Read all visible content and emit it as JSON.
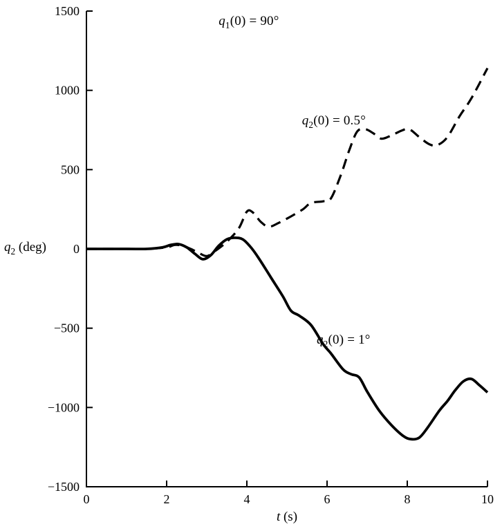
{
  "figure": {
    "background": "#ffffff",
    "ink": "#000000"
  },
  "chart_data": {
    "type": "line",
    "title": "",
    "grid": false,
    "legend": "none",
    "xlabel": {
      "var": "t",
      "sub": "",
      "rest": " (s)"
    },
    "ylabel": {
      "var": "q",
      "sub": "2",
      "rest": " (deg)"
    },
    "xlim": [
      0,
      10
    ],
    "ylim": [
      -1500,
      1500
    ],
    "xticks": {
      "values": [
        0,
        2,
        4,
        6,
        8,
        10
      ],
      "labels": [
        "0",
        "2",
        "4",
        "6",
        "8",
        "10"
      ]
    },
    "yticks": {
      "values": [
        -1500,
        -1000,
        -500,
        0,
        500,
        1000,
        1500
      ],
      "labels": [
        "−1500",
        "−1000",
        "−500",
        "0",
        "500",
        "1000",
        "1500"
      ]
    },
    "series": [
      {
        "name": "q2(0) = 0.5 deg",
        "style": "dashed",
        "x": [
          0,
          1,
          1.5,
          2.0,
          2.2,
          2.4,
          2.6,
          2.8,
          3.0,
          3.2,
          3.5,
          3.8,
          4.0,
          4.15,
          4.35,
          4.55,
          4.8,
          5.1,
          5.4,
          5.6,
          5.9,
          6.1,
          6.35,
          6.55,
          6.75,
          6.95,
          7.15,
          7.35,
          7.6,
          7.85,
          8.05,
          8.3,
          8.55,
          8.75,
          9.0,
          9.3,
          9.6,
          10.0
        ],
        "y": [
          0,
          0,
          0,
          10,
          25,
          20,
          0,
          -25,
          -45,
          -15,
          45,
          130,
          235,
          230,
          170,
          140,
          165,
          205,
          250,
          290,
          300,
          320,
          470,
          620,
          740,
          755,
          730,
          695,
          715,
          745,
          755,
          705,
          660,
          655,
          705,
          835,
          950,
          1140
        ]
      },
      {
        "name": "q2(0) = 1 deg",
        "style": "solid",
        "x": [
          0,
          1,
          1.5,
          1.9,
          2.1,
          2.3,
          2.5,
          2.7,
          2.9,
          3.1,
          3.3,
          3.5,
          3.7,
          3.9,
          4.1,
          4.3,
          4.6,
          4.9,
          5.1,
          5.3,
          5.6,
          5.9,
          6.1,
          6.4,
          6.6,
          6.8,
          7.0,
          7.3,
          7.6,
          7.9,
          8.1,
          8.3,
          8.5,
          8.8,
          9.0,
          9.2,
          9.4,
          9.6,
          9.8,
          10.0
        ],
        "y": [
          0,
          0,
          0,
          10,
          25,
          30,
          10,
          -30,
          -65,
          -40,
          20,
          60,
          70,
          60,
          10,
          -60,
          -180,
          -300,
          -390,
          -420,
          -480,
          -600,
          -660,
          -760,
          -790,
          -810,
          -900,
          -1020,
          -1110,
          -1180,
          -1200,
          -1190,
          -1130,
          -1020,
          -960,
          -890,
          -835,
          -820,
          -860,
          -905
        ]
      }
    ],
    "annotations": [
      {
        "var": "q",
        "sub": "1",
        "rest": "(0) = 90°",
        "t": 4.05,
        "q": 1435
      },
      {
        "var": "q",
        "sub": "2",
        "rest": "(0) = 0.5°",
        "t": 6.17,
        "q": 806
      },
      {
        "var": "q",
        "sub": "2",
        "rest": "(0) = 1°",
        "t": 6.41,
        "q": -575
      }
    ]
  }
}
